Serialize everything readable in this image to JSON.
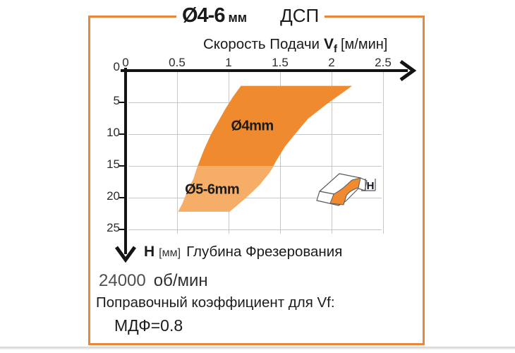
{
  "header": {
    "diameter": "Ø4-6",
    "diameter_unit": "мм",
    "material": "ДСП"
  },
  "x_axis_title": {
    "prefix": "Скорость Подачи",
    "symbol": "V",
    "subscript": "f",
    "unit": "[м/мин]"
  },
  "y_axis_title": {
    "symbol": "H",
    "unit": "[мм]",
    "text": "Глубина Фрезерования"
  },
  "footer": {
    "rpm_value": "24000",
    "rpm_unit": "об/мин",
    "correction_label": "Поправочный коэффициент для Vf:",
    "correction_value": "МДФ=0.8"
  },
  "tool_icon": {
    "depth_label": "H"
  },
  "chart_data": {
    "type": "area",
    "title": "Ø4-6 мм ДСП",
    "xlabel": "Скорость Подачи Vf [м/мин]",
    "ylabel": "H [мм] Глубина Фрезерования",
    "xlim": [
      0,
      2.5
    ],
    "ylim": [
      0,
      25
    ],
    "y_axis_direction": "down",
    "grid": true,
    "legend_position": "none",
    "x_ticks": [
      "0",
      "0.5",
      "1",
      "1.5",
      "2",
      "2.5"
    ],
    "y_ticks": [
      "0",
      "5",
      "10",
      "15",
      "20",
      "25"
    ],
    "colors": {
      "band_dark": "#ef8a2e",
      "band_light": "#f5ad68",
      "accent_border": "#e5883c"
    },
    "regions": [
      {
        "name": "Ø4mm",
        "color": "#ef8a2e",
        "label_pos": [
          1.23,
          8.6
        ],
        "points": [
          [
            1.12,
            2.4
          ],
          [
            2.2,
            2.4
          ],
          [
            1.95,
            5.3
          ],
          [
            1.77,
            7.6
          ],
          [
            1.66,
            9.7
          ],
          [
            1.55,
            11.9
          ],
          [
            1.47,
            14
          ],
          [
            1.4,
            16
          ],
          [
            1.3,
            18
          ],
          [
            1.17,
            20
          ],
          [
            1.01,
            22.2
          ],
          [
            0.51,
            22.2
          ],
          [
            0.55,
            21
          ],
          [
            0.6,
            19
          ],
          [
            0.66,
            17
          ],
          [
            0.7,
            15
          ],
          [
            0.76,
            12.5
          ],
          [
            0.83,
            10
          ],
          [
            0.9,
            8
          ],
          [
            0.97,
            6
          ],
          [
            1.04,
            4.2
          ]
        ]
      },
      {
        "name": "Ø5-6mm",
        "color": "#f5ad68",
        "label_pos": [
          0.84,
          18.6
        ],
        "points": [
          [
            0.7,
            15
          ],
          [
            1.44,
            15
          ],
          [
            1.4,
            16
          ],
          [
            1.3,
            18
          ],
          [
            1.17,
            20
          ],
          [
            1.01,
            22.2
          ],
          [
            0.51,
            22.2
          ],
          [
            0.55,
            21
          ],
          [
            0.6,
            19
          ],
          [
            0.66,
            17
          ]
        ]
      }
    ]
  }
}
